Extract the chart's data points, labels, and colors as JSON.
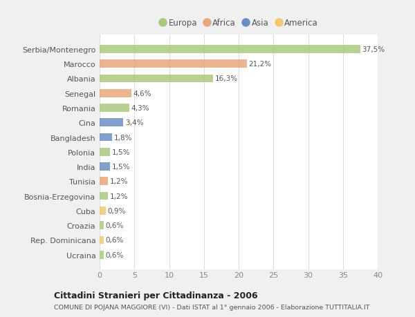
{
  "countries": [
    "Serbia/Montenegro",
    "Marocco",
    "Albania",
    "Senegal",
    "Romania",
    "Cina",
    "Bangladesh",
    "Polonia",
    "India",
    "Tunisia",
    "Bosnia-Erzegovina",
    "Cuba",
    "Croazia",
    "Rep. Dominicana",
    "Ucraina"
  ],
  "values": [
    37.5,
    21.2,
    16.3,
    4.6,
    4.3,
    3.4,
    1.8,
    1.5,
    1.5,
    1.2,
    1.2,
    0.9,
    0.6,
    0.6,
    0.6
  ],
  "labels": [
    "37,5%",
    "21,2%",
    "16,3%",
    "4,6%",
    "4,3%",
    "3,4%",
    "1,8%",
    "1,5%",
    "1,5%",
    "1,2%",
    "1,2%",
    "0,9%",
    "0,6%",
    "0,6%",
    "0,6%"
  ],
  "continent": [
    "Europa",
    "Africa",
    "Europa",
    "Africa",
    "Europa",
    "Asia",
    "Asia",
    "Europa",
    "Asia",
    "Africa",
    "Europa",
    "America",
    "Europa",
    "America",
    "Europa"
  ],
  "colors": {
    "Europa": "#aac97e",
    "Africa": "#e8a87c",
    "Asia": "#6b8fc4",
    "America": "#f0c96e"
  },
  "legend_order": [
    "Europa",
    "Africa",
    "Asia",
    "America"
  ],
  "title": "Cittadini Stranieri per Cittadinanza - 2006",
  "subtitle": "COMUNE DI POJANA MAGGIORE (VI) - Dati ISTAT al 1° gennaio 2006 - Elaborazione TUTTITALIA.IT",
  "xlim": [
    0,
    40
  ],
  "xticks": [
    0,
    5,
    10,
    15,
    20,
    25,
    30,
    35,
    40
  ],
  "fig_bg": "#f0f0f0",
  "plot_bg": "#ffffff",
  "grid_color": "#dddddd",
  "label_color": "#555555",
  "tick_color": "#888888"
}
